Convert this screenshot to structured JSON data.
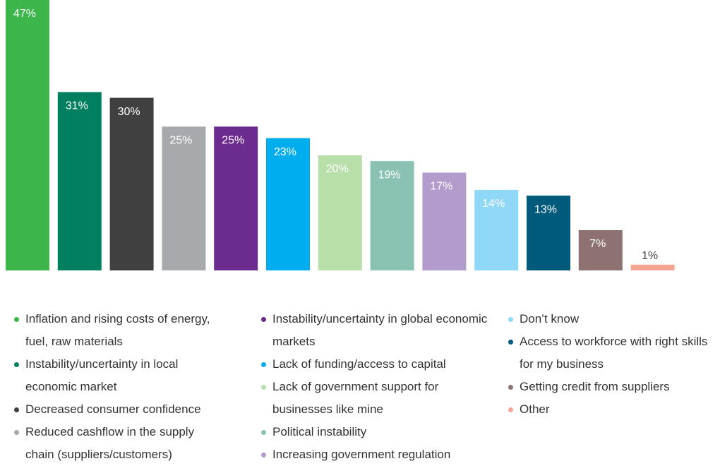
{
  "chart_data": {
    "type": "bar",
    "categories": [
      "Inflation and rising costs of energy, fuel, raw materials",
      "Instability/uncertainty in local economic market",
      "Decreased consumer confidence",
      "Reduced cashflow in the supply chain (suppliers/customers)",
      "Instability/uncertainty in global economic markets",
      "Lack of funding/access to capital",
      "Lack of government support for businesses like mine",
      "Political instability",
      "Increasing government regulation",
      "Don’t know",
      "Access to workforce with right skills for my business",
      "Getting credit from suppliers",
      "Other"
    ],
    "values": [
      47,
      31,
      30,
      25,
      25,
      23,
      20,
      19,
      17,
      14,
      13,
      7,
      1
    ],
    "value_labels": [
      "47%",
      "31%",
      "30%",
      "25%",
      "25%",
      "23%",
      "20%",
      "19%",
      "17%",
      "14%",
      "13%",
      "7%",
      "1%"
    ],
    "colors": [
      "#3cb54a",
      "#00805f",
      "#404041",
      "#a7a9ac",
      "#6c2b8f",
      "#00aeef",
      "#b8deaa",
      "#89c2b3",
      "#b39ccb",
      "#8fd8f7",
      "#005a7c",
      "#8e7272",
      "#f7a593"
    ],
    "ylim": [
      0,
      47
    ],
    "legend": "bottom"
  }
}
